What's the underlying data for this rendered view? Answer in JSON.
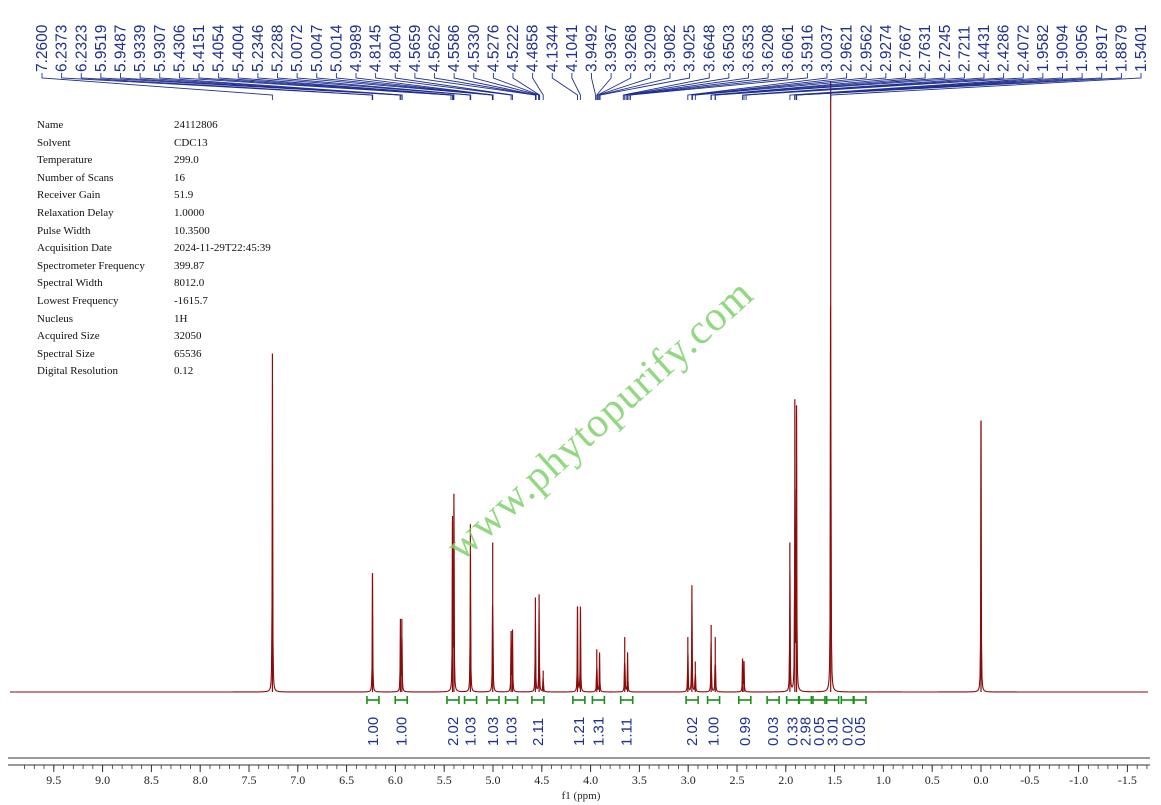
{
  "parameters": [
    {
      "name": "Name",
      "value": "24112806"
    },
    {
      "name": "Solvent",
      "value": "CDC13"
    },
    {
      "name": "Temperature",
      "value": "299.0"
    },
    {
      "name": "Number of Scans",
      "value": "16"
    },
    {
      "name": "Receiver Gain",
      "value": "51.9"
    },
    {
      "name": "Relaxation Delay",
      "value": "1.0000"
    },
    {
      "name": "Pulse Width",
      "value": "10.3500"
    },
    {
      "name": "Acquisition Date",
      "value": "2024-11-29T22:45:39"
    },
    {
      "name": "Spectrometer Frequency",
      "value": "399.87"
    },
    {
      "name": "Spectral Width",
      "value": "8012.0"
    },
    {
      "name": "Lowest Frequency",
      "value": "-1615.7"
    },
    {
      "name": "Nucleus",
      "value": "1H"
    },
    {
      "name": "Acquired Size",
      "value": "32050"
    },
    {
      "name": "Spectral Size",
      "value": "65536"
    },
    {
      "name": "Digital Resolution",
      "value": "0.12"
    }
  ],
  "watermark": "www.phytopurify.com",
  "colors": {
    "spectrum": "#8b0a0a",
    "labels": "#1f2f8f",
    "integrals": "#1a8f1a",
    "watermark": "#7ed36b",
    "axis": "#333333"
  },
  "chart_data": {
    "type": "line",
    "title": "",
    "xlabel": "f1 (ppm)",
    "ylabel": "",
    "xlim": [
      9.8,
      -1.7
    ],
    "x_reversed": true,
    "x_ticks": [
      9.5,
      9.0,
      8.5,
      8.0,
      7.5,
      7.0,
      6.5,
      6.0,
      5.5,
      5.0,
      4.5,
      4.0,
      3.5,
      3.0,
      2.5,
      2.0,
      1.5,
      1.0,
      0.5,
      0.0,
      -0.5,
      -1.0,
      -1.5
    ],
    "x_tick_labels": [
      "9.5",
      "9.0",
      "8.5",
      "8.0",
      "7.5",
      "7.0",
      "6.5",
      "6.0",
      "5.5",
      "5.0",
      "4.5",
      "4.0",
      "3.5",
      "3.0",
      "2.5",
      "2.0",
      "1.5",
      "1.0",
      "0.5",
      "0.0",
      "-0.5",
      "-1.0",
      "-1.5"
    ],
    "peak_labels": [
      "7.2600",
      "6.2373",
      "6.2323",
      "5.9519",
      "5.9487",
      "5.9339",
      "5.9307",
      "5.4306",
      "5.4151",
      "5.4054",
      "5.4004",
      "5.2346",
      "5.2288",
      "5.0072",
      "5.0047",
      "5.0014",
      "4.9989",
      "4.8145",
      "4.8004",
      "4.5659",
      "4.5622",
      "4.5586",
      "4.5330",
      "4.5276",
      "4.5222",
      "4.4858",
      "4.1344",
      "4.1041",
      "3.9492",
      "3.9367",
      "3.9268",
      "3.9209",
      "3.9082",
      "3.9025",
      "3.6648",
      "3.6503",
      "3.6353",
      "3.6208",
      "3.6061",
      "3.5916",
      "3.0037",
      "2.9621",
      "2.9562",
      "2.9274",
      "2.7667",
      "2.7631",
      "2.7245",
      "2.7211",
      "2.4431",
      "2.4286",
      "2.4072",
      "1.9582",
      "1.9094",
      "1.9056",
      "1.8917",
      "1.8879",
      "1.5401"
    ],
    "peaks": [
      {
        "ppm": 7.26,
        "height": 0.555
      },
      {
        "ppm": 6.2348,
        "height": 0.195
      },
      {
        "ppm": 5.9487,
        "height": 0.12
      },
      {
        "ppm": 5.9339,
        "height": 0.12
      },
      {
        "ppm": 5.4151,
        "height": 0.28
      },
      {
        "ppm": 5.4004,
        "height": 0.325
      },
      {
        "ppm": 5.2317,
        "height": 0.275
      },
      {
        "ppm": 5.003,
        "height": 0.245
      },
      {
        "ppm": 4.8145,
        "height": 0.1
      },
      {
        "ppm": 4.8004,
        "height": 0.1
      },
      {
        "ppm": 4.5659,
        "height": 0.155
      },
      {
        "ppm": 4.5276,
        "height": 0.16
      },
      {
        "ppm": 4.4858,
        "height": 0.035
      },
      {
        "ppm": 4.1344,
        "height": 0.14
      },
      {
        "ppm": 4.1041,
        "height": 0.14
      },
      {
        "ppm": 3.9367,
        "height": 0.07
      },
      {
        "ppm": 3.9082,
        "height": 0.065
      },
      {
        "ppm": 3.6503,
        "height": 0.09
      },
      {
        "ppm": 3.6208,
        "height": 0.065
      },
      {
        "ppm": 3.0037,
        "height": 0.09
      },
      {
        "ppm": 2.9621,
        "height": 0.175
      },
      {
        "ppm": 2.9274,
        "height": 0.05
      },
      {
        "ppm": 2.7649,
        "height": 0.11
      },
      {
        "ppm": 2.7228,
        "height": 0.09
      },
      {
        "ppm": 2.4431,
        "height": 0.055
      },
      {
        "ppm": 2.4286,
        "height": 0.05
      },
      {
        "ppm": 1.9582,
        "height": 0.245
      },
      {
        "ppm": 1.9075,
        "height": 0.48
      },
      {
        "ppm": 1.8898,
        "height": 0.47
      },
      {
        "ppm": 1.5401,
        "height": 1.0
      },
      {
        "ppm": 0.0,
        "height": 0.445
      }
    ],
    "integrals": [
      {
        "ppm": 6.23,
        "label": "1.00"
      },
      {
        "ppm": 5.94,
        "label": "1.00"
      },
      {
        "ppm": 5.41,
        "label": "2.02"
      },
      {
        "ppm": 5.23,
        "label": "1.03"
      },
      {
        "ppm": 5.0,
        "label": "1.03"
      },
      {
        "ppm": 4.81,
        "label": "1.03"
      },
      {
        "ppm": 4.54,
        "label": "2.11"
      },
      {
        "ppm": 4.12,
        "label": "1.21"
      },
      {
        "ppm": 3.92,
        "label": "1.31"
      },
      {
        "ppm": 3.63,
        "label": "1.11"
      },
      {
        "ppm": 2.96,
        "label": "2.02"
      },
      {
        "ppm": 2.74,
        "label": "1.00"
      },
      {
        "ppm": 2.42,
        "label": "0.99"
      },
      {
        "ppm": 2.13,
        "label": "0.03"
      },
      {
        "ppm": 1.93,
        "label": "0.33"
      },
      {
        "ppm": 1.8,
        "label": "2.98"
      },
      {
        "ppm": 1.66,
        "label": "0.05"
      },
      {
        "ppm": 1.52,
        "label": "3.01"
      },
      {
        "ppm": 1.37,
        "label": "0.02"
      },
      {
        "ppm": 1.24,
        "label": "0.05"
      }
    ]
  }
}
